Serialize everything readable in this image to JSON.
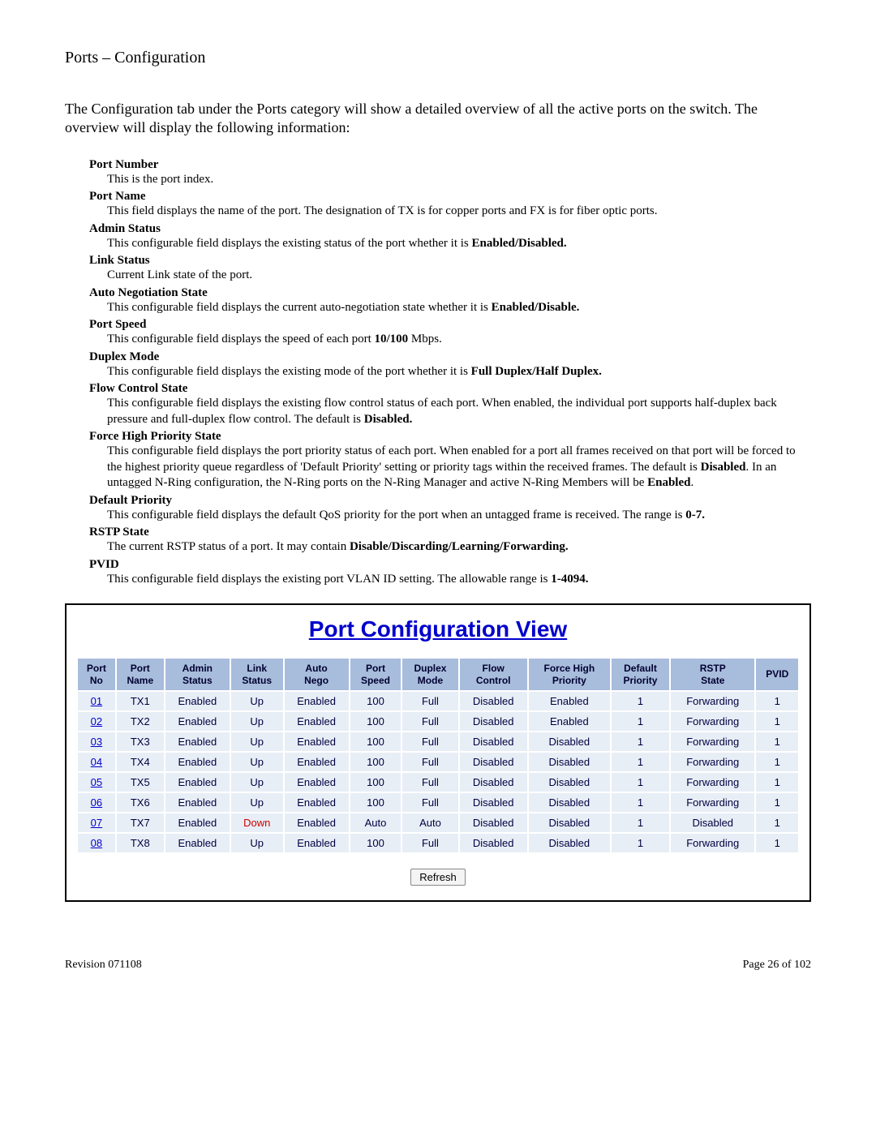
{
  "page": {
    "title": "Ports – Configuration",
    "intro": "The Configuration tab under the Ports category will show a detailed overview of all the active ports on the switch.  The overview will display the following information:",
    "footer_left": "Revision 071108",
    "footer_right": "Page 26 of 102"
  },
  "definitions": [
    {
      "term": "Port Number",
      "desc_html": "This is the port index."
    },
    {
      "term": "Port Name",
      "desc_html": "This field displays the name of the port. The designation of TX is for copper ports and FX is for fiber optic ports."
    },
    {
      "term": "Admin Status",
      "desc_html": "This configurable field displays the existing status of the port whether it is <b>Enabled/Disabled.</b>"
    },
    {
      "term": "Link Status",
      "desc_html": "Current Link state of the port."
    },
    {
      "term": "Auto Negotiation State",
      "desc_html": "This configurable field displays the current auto-negotiation state whether it is <b>Enabled/Disable.</b>"
    },
    {
      "term": "Port Speed",
      "desc_html": "This configurable field displays the speed of each port <b>10/100</b> Mbps."
    },
    {
      "term": "Duplex Mode",
      "desc_html": "This configurable field displays the existing mode of the port whether it is <b>Full Duplex/Half Duplex.</b>"
    },
    {
      "term": "Flow Control State",
      "desc_html": "This configurable field displays the existing flow control status of each port. When enabled, the individual port supports half-duplex back pressure and full-duplex flow control. The default is <b>Disabled.</b>"
    },
    {
      "term": "Force High Priority State",
      "desc_html": "This configurable field displays the port priority status of each port. When enabled for a port all frames received on that port will be forced to the highest priority queue regardless of 'Default Priority' setting or priority tags within the received frames. The default is <b>Disabled</b>. In an untagged N-Ring configuration, the N-Ring ports on the N-Ring Manager and active N-Ring Members will be <b>Enabled</b>."
    },
    {
      "term": "Default Priority",
      "desc_html": "This configurable field displays the default QoS priority for the port when an untagged frame is received. The range is <b>0-7.</b>"
    },
    {
      "term": "RSTP State",
      "desc_html": "The current RSTP status of a port. It may contain <b>Disable/Discarding/Learning/Forwarding.</b>"
    },
    {
      "term": "PVID",
      "desc_html": "This configurable field displays the existing port VLAN ID setting. The allowable range is <b>1-4094.</b>"
    }
  ],
  "panel": {
    "title": "Port Configuration View",
    "refresh_label": "Refresh",
    "header_bg": "#a8bcdc",
    "row_bg": "#e8eef6",
    "link_color": "#0000cc",
    "down_color": "#cc0000",
    "columns": [
      "Port\nNo",
      "Port\nName",
      "Admin\nStatus",
      "Link\nStatus",
      "Auto\nNego",
      "Port\nSpeed",
      "Duplex\nMode",
      "Flow\nControl",
      "Force High\nPriority",
      "Default\nPriority",
      "RSTP\nState",
      "PVID"
    ],
    "rows": [
      {
        "no": "01",
        "name": "TX1",
        "admin": "Enabled",
        "link": "Up",
        "nego": "Enabled",
        "speed": "100",
        "duplex": "Full",
        "flow": "Disabled",
        "force": "Enabled",
        "prio": "1",
        "rstp": "Forwarding",
        "pvid": "1"
      },
      {
        "no": "02",
        "name": "TX2",
        "admin": "Enabled",
        "link": "Up",
        "nego": "Enabled",
        "speed": "100",
        "duplex": "Full",
        "flow": "Disabled",
        "force": "Enabled",
        "prio": "1",
        "rstp": "Forwarding",
        "pvid": "1"
      },
      {
        "no": "03",
        "name": "TX3",
        "admin": "Enabled",
        "link": "Up",
        "nego": "Enabled",
        "speed": "100",
        "duplex": "Full",
        "flow": "Disabled",
        "force": "Disabled",
        "prio": "1",
        "rstp": "Forwarding",
        "pvid": "1"
      },
      {
        "no": "04",
        "name": "TX4",
        "admin": "Enabled",
        "link": "Up",
        "nego": "Enabled",
        "speed": "100",
        "duplex": "Full",
        "flow": "Disabled",
        "force": "Disabled",
        "prio": "1",
        "rstp": "Forwarding",
        "pvid": "1"
      },
      {
        "no": "05",
        "name": "TX5",
        "admin": "Enabled",
        "link": "Up",
        "nego": "Enabled",
        "speed": "100",
        "duplex": "Full",
        "flow": "Disabled",
        "force": "Disabled",
        "prio": "1",
        "rstp": "Forwarding",
        "pvid": "1"
      },
      {
        "no": "06",
        "name": "TX6",
        "admin": "Enabled",
        "link": "Up",
        "nego": "Enabled",
        "speed": "100",
        "duplex": "Full",
        "flow": "Disabled",
        "force": "Disabled",
        "prio": "1",
        "rstp": "Forwarding",
        "pvid": "1"
      },
      {
        "no": "07",
        "name": "TX7",
        "admin": "Enabled",
        "link": "Down",
        "nego": "Enabled",
        "speed": "Auto",
        "duplex": "Auto",
        "flow": "Disabled",
        "force": "Disabled",
        "prio": "1",
        "rstp": "Disabled",
        "pvid": "1"
      },
      {
        "no": "08",
        "name": "TX8",
        "admin": "Enabled",
        "link": "Up",
        "nego": "Enabled",
        "speed": "100",
        "duplex": "Full",
        "flow": "Disabled",
        "force": "Disabled",
        "prio": "1",
        "rstp": "Forwarding",
        "pvid": "1"
      }
    ]
  }
}
